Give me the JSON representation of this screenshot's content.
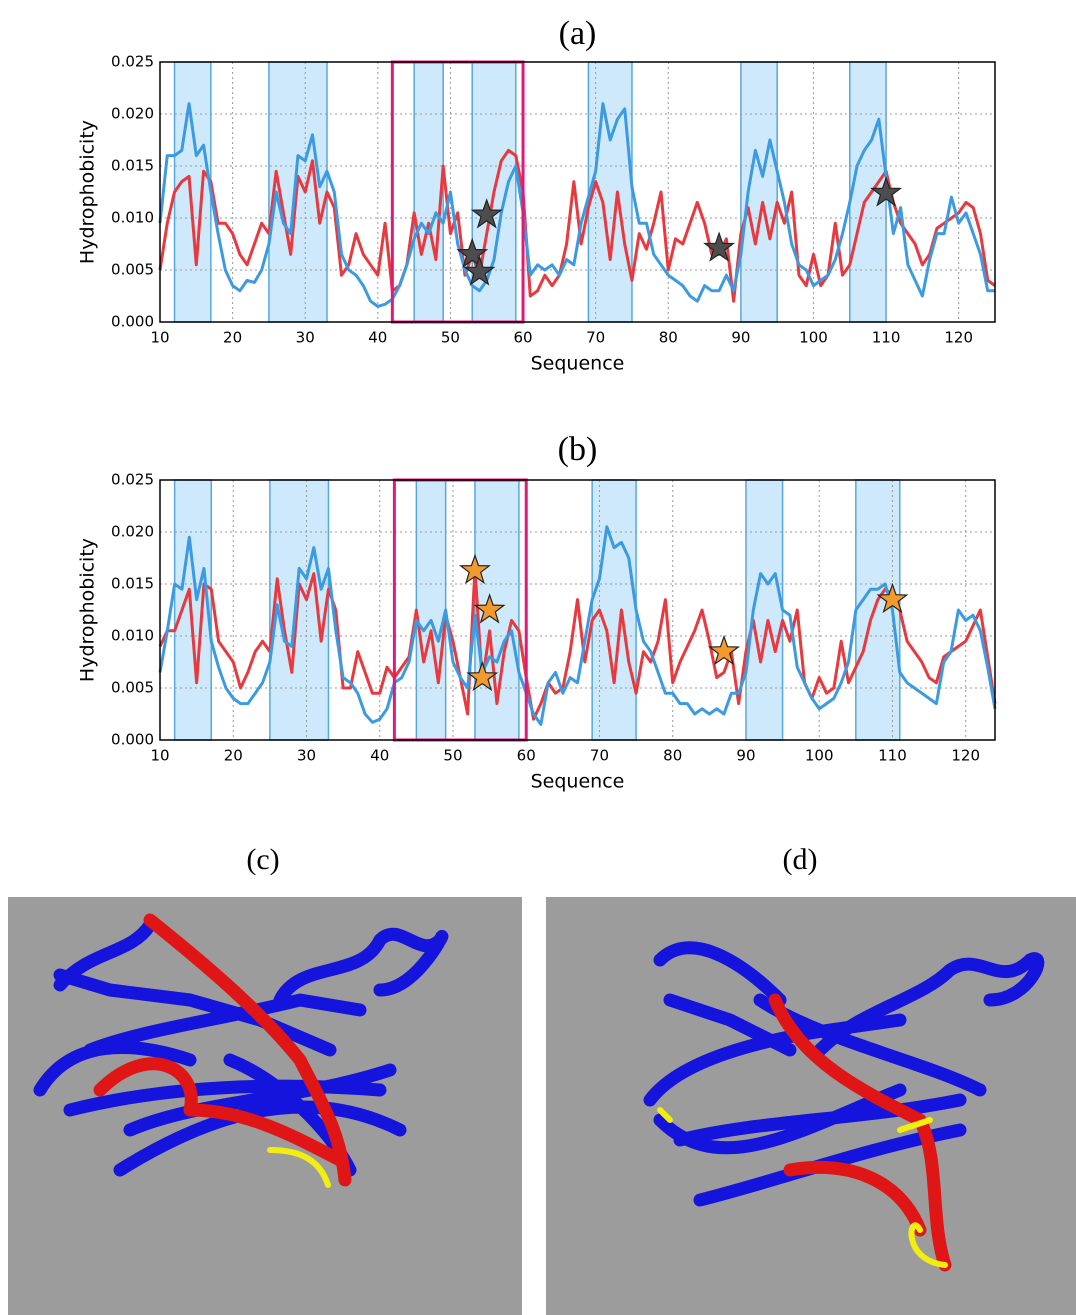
{
  "chart_data": [
    {
      "type": "line",
      "title": "(a)",
      "x_label": "Sequence",
      "y_label": "Hydrophobicity",
      "xlim": [
        10,
        125
      ],
      "ylim": [
        0,
        0.025
      ],
      "xticks": [
        10,
        20,
        30,
        40,
        50,
        60,
        70,
        80,
        90,
        100,
        110,
        120
      ],
      "yticks": [
        {
          "value": 0,
          "label": "0.000"
        },
        {
          "value": 0.005,
          "label": "0.005"
        },
        {
          "value": 0.01,
          "label": "0.010"
        },
        {
          "value": 0.015,
          "label": "0.015"
        },
        {
          "value": 0.02,
          "label": "0.020"
        },
        {
          "value": 0.025,
          "label": "0.025"
        }
      ],
      "grid": true,
      "shaded_spans": {
        "color": "#cde9fb",
        "edge_color": "#56a9e0",
        "ranges": [
          [
            12,
            17
          ],
          [
            25,
            33
          ],
          [
            45,
            49
          ],
          [
            53,
            59
          ],
          [
            69,
            75
          ],
          [
            90,
            95
          ],
          [
            105,
            110
          ]
        ]
      },
      "highlight_box": {
        "color": "#e0197d",
        "range": [
          42,
          60
        ]
      },
      "x": [
        10,
        11,
        12,
        13,
        14,
        15,
        16,
        17,
        18,
        19,
        20,
        21,
        22,
        23,
        24,
        25,
        26,
        27,
        28,
        29,
        30,
        31,
        32,
        33,
        34,
        35,
        36,
        37,
        38,
        39,
        40,
        41,
        42,
        43,
        44,
        45,
        46,
        47,
        48,
        49,
        50,
        51,
        52,
        53,
        54,
        55,
        56,
        57,
        58,
        59,
        60,
        61,
        62,
        63,
        64,
        65,
        66,
        67,
        68,
        69,
        70,
        71,
        72,
        73,
        74,
        75,
        76,
        77,
        78,
        79,
        80,
        81,
        82,
        83,
        84,
        85,
        86,
        87,
        88,
        89,
        90,
        91,
        92,
        93,
        94,
        95,
        96,
        97,
        98,
        99,
        100,
        101,
        102,
        103,
        104,
        105,
        106,
        107,
        108,
        109,
        110,
        111,
        112,
        113,
        114,
        115,
        116,
        117,
        118,
        119,
        120,
        121,
        122,
        123,
        124,
        125
      ],
      "series": [
        {
          "color": "#e8393f",
          "values": [
            0.005,
            0.0095,
            0.0125,
            0.0135,
            0.014,
            0.0055,
            0.0145,
            0.0135,
            0.0095,
            0.0095,
            0.0085,
            0.0065,
            0.0055,
            0.0075,
            0.0095,
            0.0085,
            0.0145,
            0.0105,
            0.0065,
            0.014,
            0.0125,
            0.0155,
            0.0095,
            0.0125,
            0.011,
            0.0045,
            0.0055,
            0.0085,
            0.0065,
            0.0055,
            0.0045,
            0.0095,
            0.003,
            0.0035,
            0.0055,
            0.0105,
            0.0065,
            0.0095,
            0.006,
            0.015,
            0.0085,
            0.0105,
            0.0045,
            0.0065,
            0.0045,
            0.0085,
            0.0125,
            0.0155,
            0.0165,
            0.016,
            0.0125,
            0.0025,
            0.003,
            0.0045,
            0.0035,
            0.0045,
            0.0075,
            0.0135,
            0.0075,
            0.011,
            0.0135,
            0.0115,
            0.006,
            0.0125,
            0.0075,
            0.004,
            0.0085,
            0.007,
            0.0095,
            0.0125,
            0.005,
            0.008,
            0.0075,
            0.0095,
            0.0115,
            0.0095,
            0.0065,
            0.0065,
            0.008,
            0.002,
            0.0085,
            0.011,
            0.0075,
            0.0115,
            0.008,
            0.0115,
            0.0095,
            0.0125,
            0.0045,
            0.0035,
            0.0065,
            0.0035,
            0.0045,
            0.0095,
            0.0045,
            0.0055,
            0.0085,
            0.0115,
            0.0125,
            0.0135,
            0.0145,
            0.0115,
            0.0095,
            0.0085,
            0.0075,
            0.0055,
            0.0065,
            0.009,
            0.0095,
            0.01,
            0.0105,
            0.0115,
            0.011,
            0.0085,
            0.004,
            0.0035
          ]
        },
        {
          "color": "#3b9ae1",
          "values": [
            0.0095,
            0.016,
            0.016,
            0.0165,
            0.021,
            0.016,
            0.017,
            0.0125,
            0.0085,
            0.005,
            0.0035,
            0.003,
            0.004,
            0.0038,
            0.005,
            0.0075,
            0.0125,
            0.0095,
            0.0085,
            0.016,
            0.0155,
            0.018,
            0.013,
            0.0145,
            0.0125,
            0.0065,
            0.005,
            0.0045,
            0.0035,
            0.002,
            0.0015,
            0.0017,
            0.0022,
            0.0035,
            0.0055,
            0.008,
            0.0095,
            0.0085,
            0.0105,
            0.0095,
            0.0125,
            0.0075,
            0.005,
            0.0035,
            0.003,
            0.004,
            0.006,
            0.0105,
            0.0135,
            0.015,
            0.0105,
            0.0045,
            0.0055,
            0.005,
            0.0055,
            0.0045,
            0.006,
            0.0055,
            0.0095,
            0.012,
            0.0145,
            0.021,
            0.0175,
            0.0195,
            0.0205,
            0.013,
            0.0095,
            0.0095,
            0.0065,
            0.0055,
            0.0045,
            0.004,
            0.0035,
            0.0025,
            0.002,
            0.0035,
            0.003,
            0.003,
            0.0045,
            0.003,
            0.0065,
            0.0125,
            0.0165,
            0.014,
            0.0175,
            0.0145,
            0.0115,
            0.0075,
            0.0055,
            0.005,
            0.0035,
            0.004,
            0.0045,
            0.006,
            0.0085,
            0.0115,
            0.015,
            0.0165,
            0.0175,
            0.0195,
            0.014,
            0.0085,
            0.011,
            0.0055,
            0.004,
            0.0025,
            0.006,
            0.0085,
            0.0085,
            0.012,
            0.0095,
            0.0105,
            0.0085,
            0.0065,
            0.003,
            0.003
          ]
        }
      ],
      "stars": {
        "color": "#4d4d4d",
        "x": [
          53,
          54,
          55,
          87,
          110
        ],
        "y": [
          0.0065,
          0.0048,
          0.0103,
          0.0071,
          0.0124
        ]
      }
    },
    {
      "type": "line",
      "title": "(b)",
      "x_label": "Sequence",
      "y_label": "Hydrophobicity",
      "xlim": [
        10,
        124
      ],
      "ylim": [
        0,
        0.025
      ],
      "xticks": [
        10,
        20,
        30,
        40,
        50,
        60,
        70,
        80,
        90,
        100,
        110,
        120
      ],
      "yticks": [
        {
          "value": 0,
          "label": "0.000"
        },
        {
          "value": 0.005,
          "label": "0.005"
        },
        {
          "value": 0.01,
          "label": "0.010"
        },
        {
          "value": 0.015,
          "label": "0.015"
        },
        {
          "value": 0.02,
          "label": "0.020"
        },
        {
          "value": 0.025,
          "label": "0.025"
        }
      ],
      "grid": true,
      "shaded_spans": {
        "color": "#cde9fb",
        "edge_color": "#56a9e0",
        "ranges": [
          [
            12,
            17
          ],
          [
            25,
            33
          ],
          [
            45,
            49
          ],
          [
            53,
            59
          ],
          [
            69,
            75
          ],
          [
            90,
            95
          ],
          [
            105,
            111
          ]
        ]
      },
      "highlight_box": {
        "color": "#e0197d",
        "range": [
          42,
          60
        ]
      },
      "x": [
        10,
        11,
        12,
        13,
        14,
        15,
        16,
        17,
        18,
        19,
        20,
        21,
        22,
        23,
        24,
        25,
        26,
        27,
        28,
        29,
        30,
        31,
        32,
        33,
        34,
        35,
        36,
        37,
        38,
        39,
        40,
        41,
        42,
        43,
        44,
        45,
        46,
        47,
        48,
        49,
        50,
        51,
        52,
        53,
        54,
        55,
        56,
        57,
        58,
        59,
        60,
        61,
        62,
        63,
        64,
        65,
        66,
        67,
        68,
        69,
        70,
        71,
        72,
        73,
        74,
        75,
        76,
        77,
        78,
        79,
        80,
        81,
        82,
        83,
        84,
        85,
        86,
        87,
        88,
        89,
        90,
        91,
        92,
        93,
        94,
        95,
        96,
        97,
        98,
        99,
        100,
        101,
        102,
        103,
        104,
        105,
        106,
        107,
        108,
        109,
        110,
        111,
        112,
        113,
        114,
        115,
        116,
        117,
        118,
        119,
        120,
        121,
        122,
        123,
        124
      ],
      "series": [
        {
          "color": "#e8393f",
          "values": [
            0.009,
            0.0105,
            0.0105,
            0.0125,
            0.0145,
            0.0055,
            0.015,
            0.0145,
            0.0095,
            0.0085,
            0.0075,
            0.005,
            0.0065,
            0.0085,
            0.0095,
            0.0085,
            0.0155,
            0.0105,
            0.0065,
            0.015,
            0.0135,
            0.016,
            0.0095,
            0.0145,
            0.0125,
            0.005,
            0.005,
            0.0085,
            0.0065,
            0.0045,
            0.0045,
            0.007,
            0.006,
            0.007,
            0.008,
            0.0125,
            0.0075,
            0.0105,
            0.0055,
            0.012,
            0.0095,
            0.006,
            0.0025,
            0.0165,
            0.0055,
            0.0105,
            0.0035,
            0.0085,
            0.0115,
            0.0105,
            0.006,
            0.002,
            0.0035,
            0.0055,
            0.0045,
            0.005,
            0.0085,
            0.0135,
            0.0075,
            0.0115,
            0.0125,
            0.0105,
            0.0055,
            0.0125,
            0.0075,
            0.0045,
            0.0085,
            0.0075,
            0.0095,
            0.0135,
            0.0055,
            0.0075,
            0.009,
            0.0105,
            0.0125,
            0.0095,
            0.006,
            0.0065,
            0.0085,
            0.0035,
            0.0085,
            0.0115,
            0.0075,
            0.0115,
            0.0085,
            0.0115,
            0.0095,
            0.0125,
            0.0055,
            0.004,
            0.006,
            0.0045,
            0.005,
            0.0095,
            0.0055,
            0.007,
            0.0085,
            0.0115,
            0.0135,
            0.0145,
            0.014,
            0.0125,
            0.0095,
            0.0085,
            0.0075,
            0.006,
            0.0055,
            0.008,
            0.0085,
            0.009,
            0.0095,
            0.011,
            0.0125,
            0.008,
            0.0035
          ]
        },
        {
          "color": "#3b9ae1",
          "values": [
            0.0065,
            0.0105,
            0.015,
            0.0145,
            0.0195,
            0.0135,
            0.0165,
            0.0095,
            0.007,
            0.005,
            0.004,
            0.0035,
            0.0035,
            0.0045,
            0.0055,
            0.0075,
            0.013,
            0.0095,
            0.009,
            0.0165,
            0.0155,
            0.0185,
            0.0145,
            0.0165,
            0.0105,
            0.006,
            0.0055,
            0.0045,
            0.0025,
            0.0017,
            0.002,
            0.003,
            0.0055,
            0.006,
            0.0075,
            0.0115,
            0.0105,
            0.0115,
            0.0095,
            0.0125,
            0.0075,
            0.006,
            0.005,
            0.012,
            0.0065,
            0.008,
            0.0075,
            0.0095,
            0.0105,
            0.0065,
            0.0045,
            0.0025,
            0.0015,
            0.0055,
            0.0065,
            0.0045,
            0.006,
            0.0055,
            0.0095,
            0.0135,
            0.0155,
            0.0205,
            0.0185,
            0.019,
            0.0175,
            0.0125,
            0.0095,
            0.0085,
            0.0065,
            0.0045,
            0.0045,
            0.0035,
            0.0035,
            0.0025,
            0.003,
            0.0025,
            0.003,
            0.0025,
            0.0045,
            0.0045,
            0.0065,
            0.0125,
            0.016,
            0.015,
            0.016,
            0.0125,
            0.012,
            0.007,
            0.0055,
            0.004,
            0.003,
            0.0035,
            0.004,
            0.0055,
            0.0075,
            0.0125,
            0.0135,
            0.0145,
            0.0145,
            0.015,
            0.0125,
            0.0065,
            0.0055,
            0.005,
            0.0045,
            0.004,
            0.0035,
            0.0075,
            0.0085,
            0.0125,
            0.0115,
            0.012,
            0.0105,
            0.007,
            0.003
          ]
        }
      ],
      "stars": {
        "color": "#f39a2c",
        "x": [
          53,
          54,
          55,
          87,
          110
        ],
        "y": [
          0.0163,
          0.006,
          0.0125,
          0.0085,
          0.0135
        ]
      }
    }
  ],
  "panels": [
    {
      "label": "(c)"
    },
    {
      "label": "(d)"
    }
  ]
}
